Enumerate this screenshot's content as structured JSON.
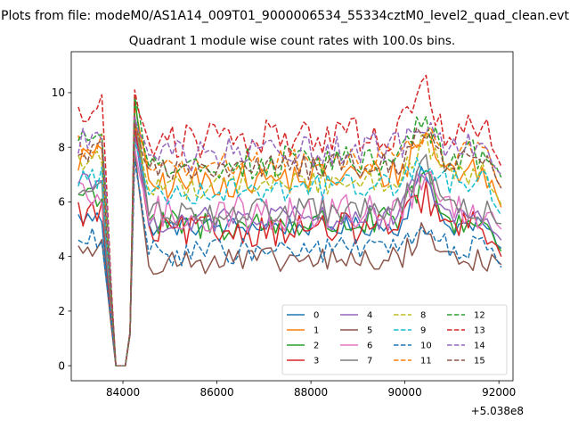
{
  "figure": {
    "suptitle": "Plots from file: modeM0/AS1A14_009T01_9000006534_55334cztM0_level2_quad_clean.evt",
    "title": "Quadrant 1 module wise count rates with 100.0s bins."
  },
  "chart_data": {
    "type": "line",
    "title": "Quadrant 1 module wise count rates with 100.0s bins.",
    "xlabel": "",
    "ylabel": "",
    "x_offset_label": "+5.038e8",
    "xlim": [
      82900,
      92300
    ],
    "ylim": [
      -0.55,
      11.5
    ],
    "xticks": [
      84000,
      86000,
      88000,
      90000,
      92000
    ],
    "xtick_labels": [
      "84000",
      "86000",
      "88000",
      "90000",
      "92000"
    ],
    "yticks": [
      0,
      2,
      4,
      6,
      8,
      10
    ],
    "ytick_labels": [
      "0",
      "2",
      "4",
      "6",
      "8",
      "10"
    ],
    "grid": false,
    "legend_position": "lower-right",
    "legend_columns": 4,
    "x_start": 83050,
    "x_step": 100,
    "gap_region": {
      "zero_from": 83850,
      "zero_to": 84050,
      "ramp_down_from": 83550
    },
    "series": [
      {
        "name": "0",
        "color": "#1f77b4",
        "dash": "solid",
        "base": 5.1,
        "trend": 0.0,
        "noise": 0.15,
        "pre": 5.4,
        "post": 8.6,
        "peak": 7.2,
        "end": 4.3
      },
      {
        "name": "1",
        "color": "#ff7f0e",
        "dash": "solid",
        "base": 6.6,
        "trend": 0.6,
        "noise": 0.25,
        "pre": 7.6,
        "post": 9.6,
        "peak": 8.6,
        "end": 5.8
      },
      {
        "name": "2",
        "color": "#2ca02c",
        "dash": "solid",
        "base": 5.1,
        "trend": 0.2,
        "noise": 0.25,
        "pre": 6.3,
        "post": 9.9,
        "peak": 7.0,
        "end": 4.2
      },
      {
        "name": "3",
        "color": "#d62728",
        "dash": "solid",
        "base": 4.9,
        "trend": 0.2,
        "noise": 0.25,
        "pre": 5.6,
        "post": 8.8,
        "peak": 6.3,
        "end": 4.0
      },
      {
        "name": "4",
        "color": "#9467bd",
        "dash": "solid",
        "base": 5.3,
        "trend": 0.2,
        "noise": 0.2,
        "pre": 6.9,
        "post": 8.4,
        "peak": 7.3,
        "end": 4.6
      },
      {
        "name": "5",
        "color": "#8c564b",
        "dash": "solid",
        "base": 3.8,
        "trend": 0.1,
        "noise": 0.2,
        "pre": 4.3,
        "post": 7.9,
        "peak": 5.1,
        "end": 3.7
      },
      {
        "name": "6",
        "color": "#e377c2",
        "dash": "solid",
        "base": 5.5,
        "trend": 0.2,
        "noise": 0.3,
        "pre": 6.1,
        "post": 8.0,
        "peak": 7.1,
        "end": 5.0
      },
      {
        "name": "7",
        "color": "#7f7f7f",
        "dash": "solid",
        "base": 5.6,
        "trend": 0.1,
        "noise": 0.2,
        "pre": 6.4,
        "post": 9.2,
        "peak": 7.7,
        "end": 5.2
      },
      {
        "name": "8",
        "color": "#bcbd22",
        "dash": "dashed",
        "base": 6.5,
        "trend": 0.5,
        "noise": 0.2,
        "pre": 7.5,
        "post": 9.0,
        "peak": 8.2,
        "end": 5.9
      },
      {
        "name": "9",
        "color": "#17becf",
        "dash": "dashed",
        "base": 6.3,
        "trend": 0.5,
        "noise": 0.2,
        "pre": 6.9,
        "post": 8.2,
        "peak": 7.5,
        "end": 5.5
      },
      {
        "name": "10",
        "color": "#1f77b4",
        "dash": "dashed",
        "base": 4.1,
        "trend": 0.3,
        "noise": 0.2,
        "pre": 4.6,
        "post": 7.5,
        "peak": 5.0,
        "end": 3.6
      },
      {
        "name": "11",
        "color": "#ff7f0e",
        "dash": "dashed",
        "base": 7.2,
        "trend": 0.6,
        "noise": 0.2,
        "pre": 8.1,
        "post": 8.8,
        "peak": 8.6,
        "end": 6.5
      },
      {
        "name": "12",
        "color": "#2ca02c",
        "dash": "dashed",
        "base": 7.3,
        "trend": 0.4,
        "noise": 0.25,
        "pre": 8.5,
        "post": 9.8,
        "peak": 9.0,
        "end": 6.9
      },
      {
        "name": "13",
        "color": "#d62728",
        "dash": "dashed",
        "base": 8.1,
        "trend": 0.6,
        "noise": 0.3,
        "pre": 9.3,
        "post": 10.1,
        "peak": 10.2,
        "end": 7.3
      },
      {
        "name": "14",
        "color": "#9467bd",
        "dash": "dashed",
        "base": 7.6,
        "trend": 0.6,
        "noise": 0.25,
        "pre": 8.3,
        "post": 9.1,
        "peak": 9.1,
        "end": 7.0
      },
      {
        "name": "15",
        "color": "#8c564b",
        "dash": "dashed",
        "base": 7.1,
        "trend": 0.4,
        "noise": 0.2,
        "pre": 7.8,
        "post": 8.9,
        "peak": 8.6,
        "end": 6.5
      }
    ]
  }
}
